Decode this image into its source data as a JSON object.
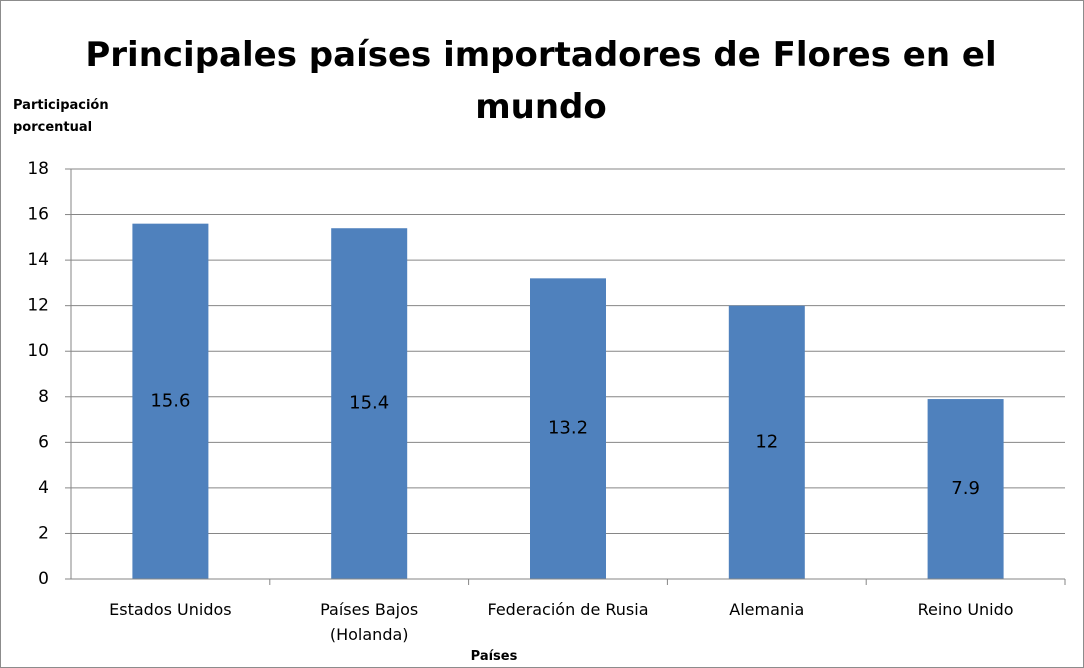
{
  "chart_data": {
    "type": "bar",
    "title": "Principales países importadores de Flores en el mundo",
    "y_label": "Participación porcentual",
    "x_label": "Países",
    "categories": [
      "Estados Unidos",
      "Países Bajos (Holanda)",
      "Federación de Rusia",
      "Alemania",
      "Reino Unido"
    ],
    "values": [
      15.6,
      15.4,
      13.2,
      12,
      7.9
    ],
    "color": "#4f81bd",
    "ylim": [
      0,
      18
    ],
    "yticks": [
      0,
      2,
      4,
      6,
      8,
      10,
      12,
      14,
      16,
      18
    ],
    "grid": true
  }
}
